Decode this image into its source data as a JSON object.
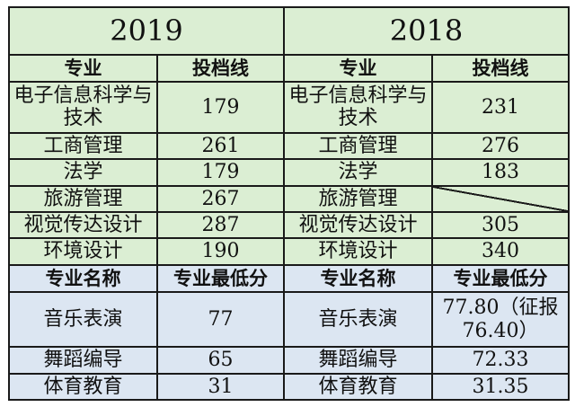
{
  "years": [
    "2019",
    "2018"
  ],
  "top_header": {
    "major": "专业",
    "score": "投档线"
  },
  "top_rows": [
    {
      "name": "电子信息科学与技术",
      "v2019": "179",
      "v2018": "231"
    },
    {
      "name": "工商管理",
      "v2019": "261",
      "v2018": "276"
    },
    {
      "name": "法学",
      "v2019": "179",
      "v2018": "183"
    },
    {
      "name": "旅游管理",
      "v2019": "267",
      "v2018": ""
    },
    {
      "name": "视觉传达设计",
      "v2019": "287",
      "v2018": "305"
    },
    {
      "name": "环境设计",
      "v2019": "190",
      "v2018": "340"
    }
  ],
  "bottom_header": {
    "major": "专业名称",
    "score": "专业最低分"
  },
  "bottom_rows": [
    {
      "name": "音乐表演",
      "v2019": "77",
      "v2018": "77.80（征报76.40）"
    },
    {
      "name": "舞蹈编导",
      "v2019": "65",
      "v2018": "72.33"
    },
    {
      "name": "体育教育",
      "v2019": "31",
      "v2018": "31.35"
    }
  ]
}
